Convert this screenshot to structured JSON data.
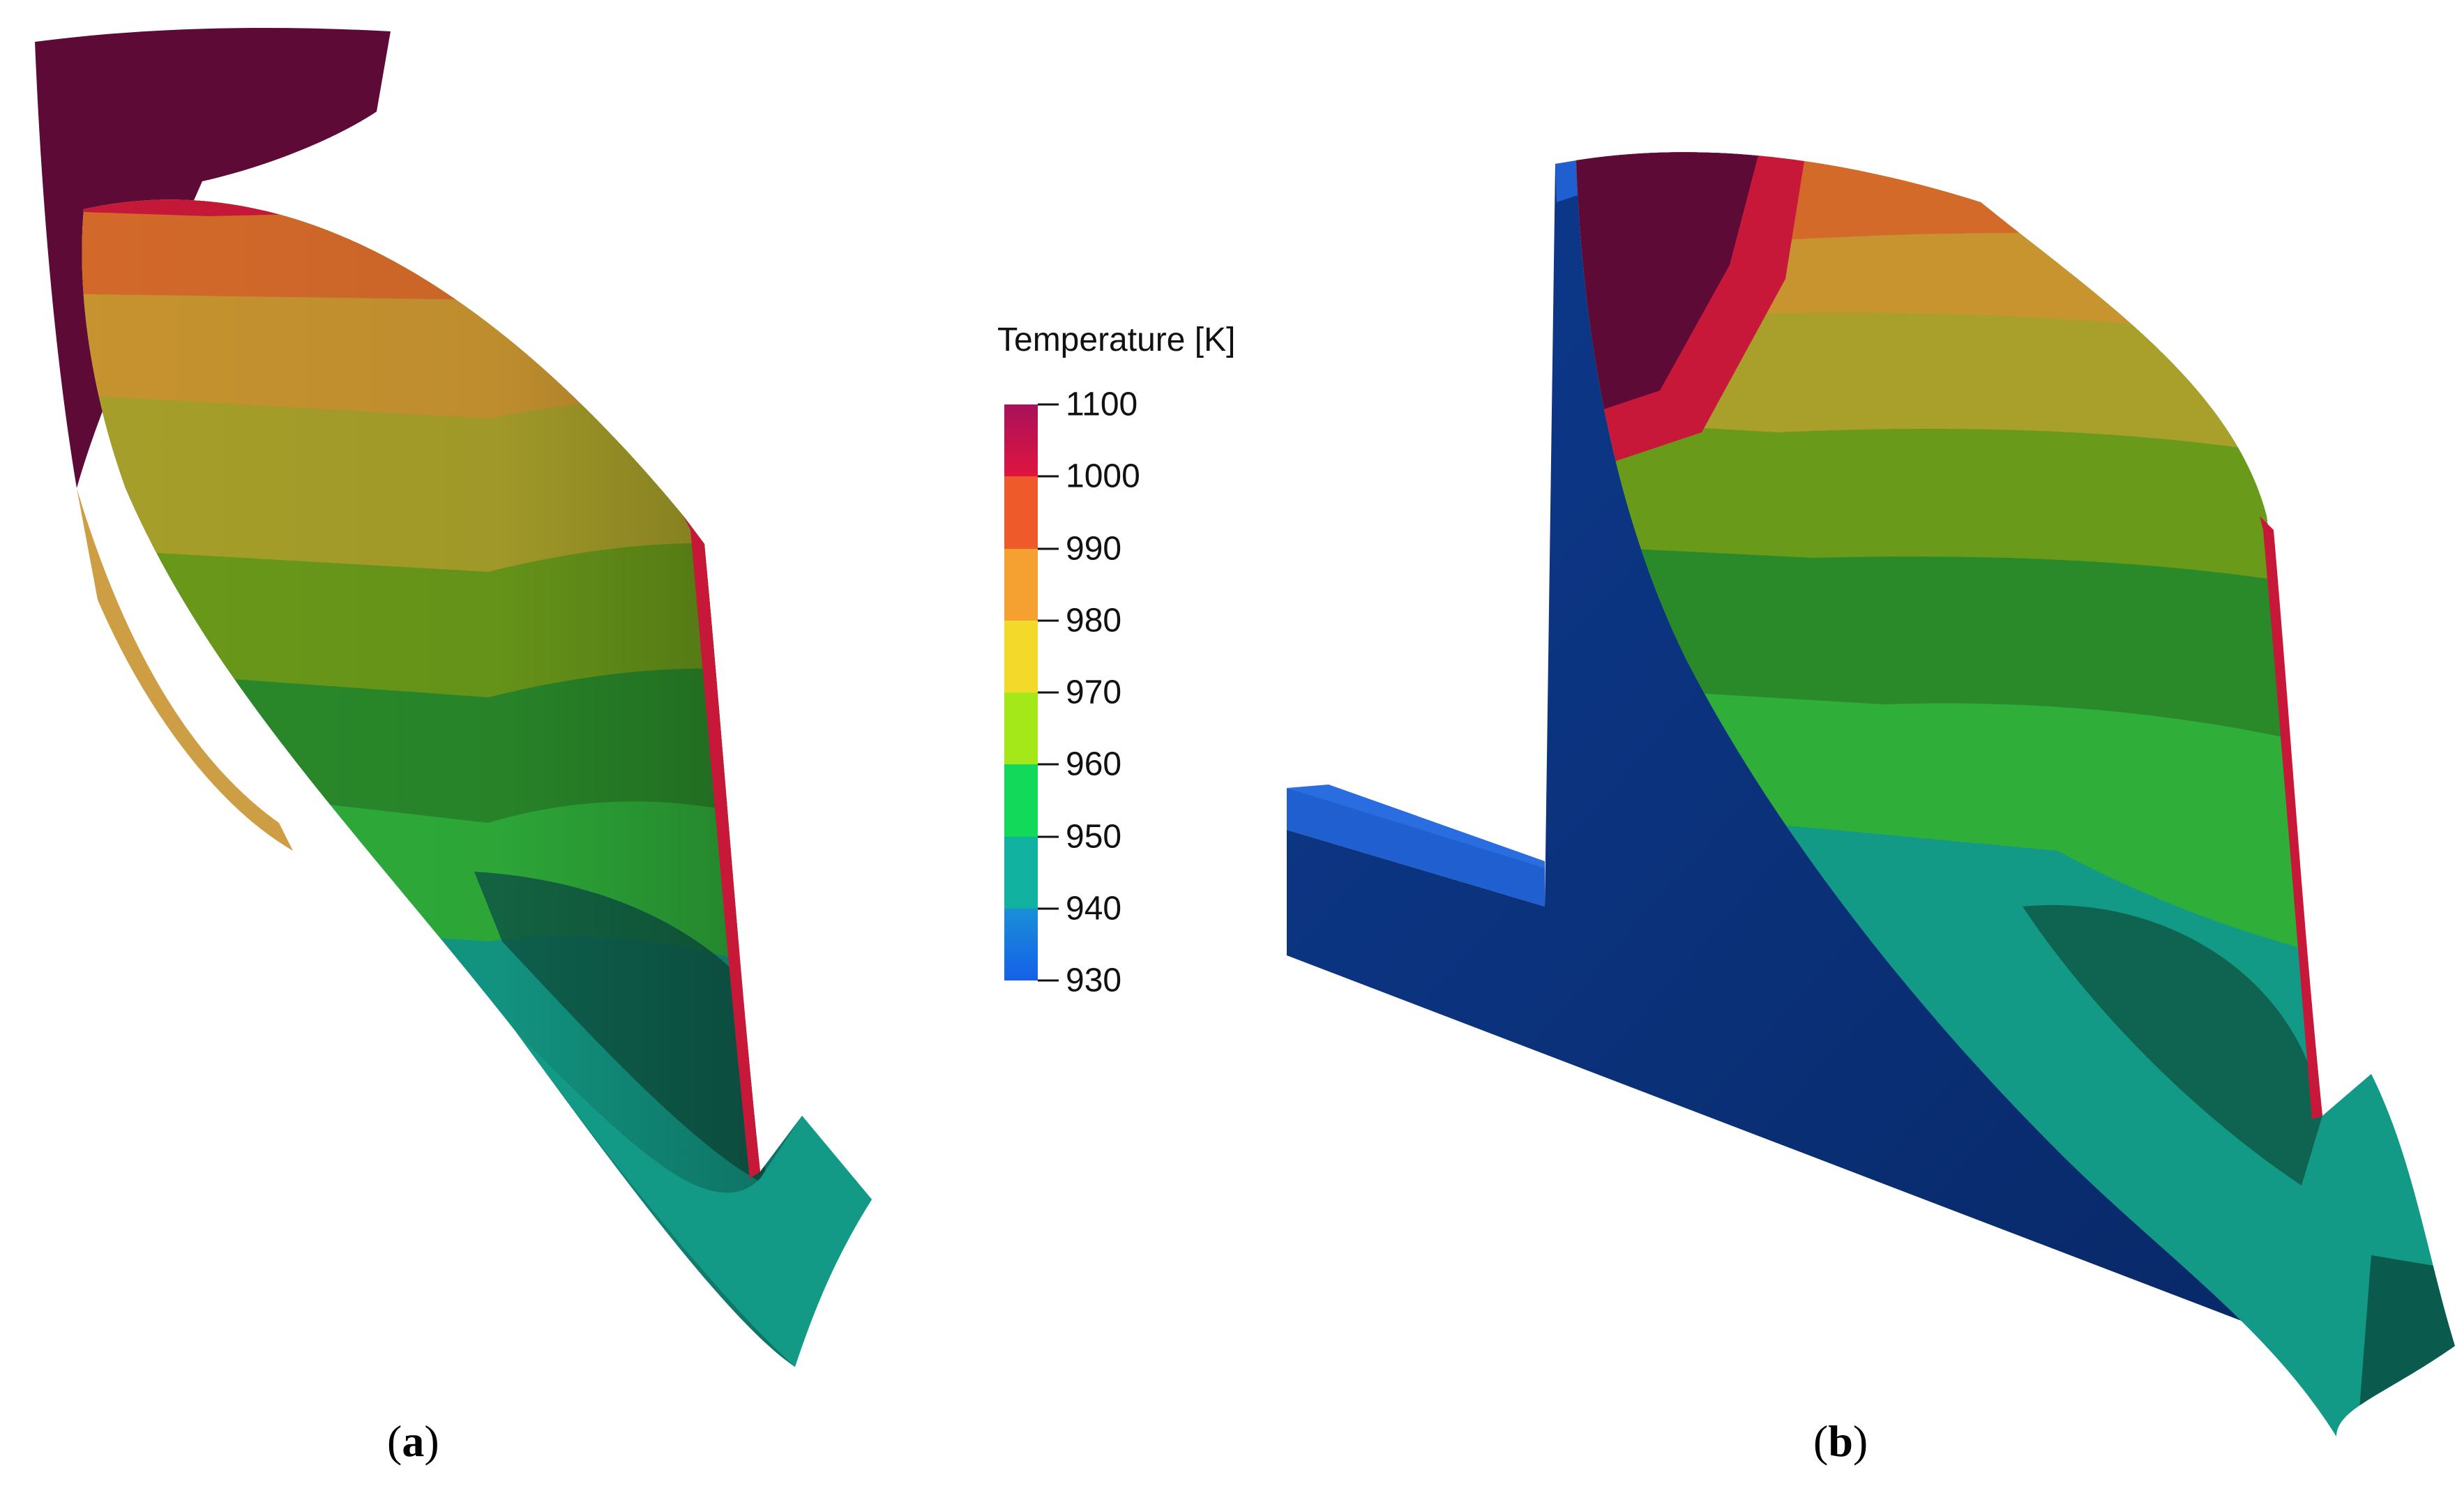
{
  "legend": {
    "title": "Temperature [K]",
    "ticks": [
      "1100",
      "1000",
      "990",
      "980",
      "970",
      "960",
      "950",
      "940",
      "930"
    ],
    "bands": [
      {
        "from": "1000",
        "to": "1100",
        "colors": [
          "#a8125a",
          "#e01440"
        ]
      },
      {
        "from": "990",
        "to": "1000",
        "color": "#ef5a2a"
      },
      {
        "from": "980",
        "to": "990",
        "color": "#f5a131"
      },
      {
        "from": "970",
        "to": "980",
        "color": "#f2d92a"
      },
      {
        "from": "960",
        "to": "970",
        "color": "#a4e81a"
      },
      {
        "from": "950",
        "to": "960",
        "color": "#13d95a"
      },
      {
        "from": "940",
        "to": "950",
        "color": "#12b2a0"
      },
      {
        "from": "930",
        "to": "940",
        "color": "#1a8fd8"
      }
    ],
    "bottom_color": "#1560e8"
  },
  "panels": [
    {
      "id": "a",
      "caption_open": "(",
      "caption_letter": "a",
      "caption_close": ")"
    },
    {
      "id": "b",
      "caption_open": "(",
      "caption_letter": "b",
      "caption_close": ")"
    }
  ],
  "palette": {
    "dark_purple": "#5e0a36",
    "red": "#c8183a",
    "orange": "#d46a2a",
    "amber": "#c89430",
    "yellow_olive": "#a8a02a",
    "olive_green": "#6a9a1a",
    "green": "#2a8a2a",
    "dark_green": "#1a6a3a",
    "teal": "#139a86",
    "dark_teal": "#0a5a4e",
    "navy": "#0b2e7a",
    "blue_edge": "#1f5fd0"
  }
}
